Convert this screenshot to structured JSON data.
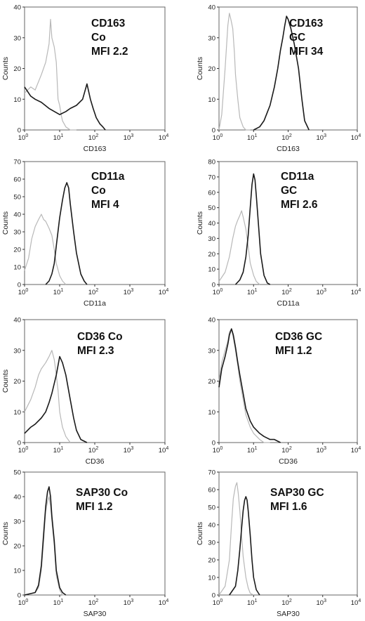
{
  "chart_data": [
    {
      "type": "line",
      "title": "",
      "xlabel": "CD163",
      "ylabel": "Counts",
      "xscale": "log",
      "xlim": [
        1,
        10000
      ],
      "ylim": [
        0,
        40
      ],
      "yticks": [
        0,
        10,
        20,
        30,
        40
      ],
      "xtick_bases": [
        "10",
        "10",
        "10",
        "10",
        "10"
      ],
      "xtick_exps": [
        "0",
        "1",
        "2",
        "3",
        "4"
      ],
      "annotation": [
        "CD163",
        "Co",
        "MFI 2.2"
      ],
      "series": [
        {
          "color": "#b8b8b8",
          "x": [
            1,
            1.5,
            2,
            3,
            4,
            5,
            5.5,
            6,
            7,
            8,
            9,
            10,
            11,
            12,
            15,
            20,
            30
          ],
          "y": [
            12,
            14,
            13,
            18,
            22,
            28,
            36,
            30,
            27,
            22,
            10,
            8,
            5,
            3,
            1,
            0,
            0
          ]
        },
        {
          "color": "#1a1a1a",
          "x": [
            1,
            1.5,
            2,
            3,
            5,
            10,
            15,
            20,
            30,
            45,
            60,
            75,
            90,
            110,
            140,
            170,
            200
          ],
          "y": [
            14,
            11,
            10,
            9,
            7,
            5,
            6,
            7,
            8,
            10,
            15,
            10,
            7,
            4,
            2,
            1,
            0
          ]
        }
      ]
    },
    {
      "type": "line",
      "title": "",
      "xlabel": "CD163",
      "ylabel": "Counts",
      "xscale": "log",
      "xlim": [
        1,
        10000
      ],
      "ylim": [
        0,
        40
      ],
      "yticks": [
        0,
        10,
        20,
        30,
        40
      ],
      "xtick_bases": [
        "10",
        "10",
        "10",
        "10",
        "10"
      ],
      "xtick_exps": [
        "0",
        "1",
        "2",
        "3",
        "4"
      ],
      "annotation": [
        "CD163",
        "GC",
        "MFI 34"
      ],
      "series": [
        {
          "color": "#b8b8b8",
          "x": [
            1,
            1.2,
            1.5,
            1.8,
            2,
            2.2,
            2.5,
            2.8,
            3,
            3.5,
            4,
            5,
            6,
            8
          ],
          "y": [
            0,
            5,
            20,
            34,
            38,
            36,
            33,
            25,
            18,
            10,
            4,
            1,
            0,
            0
          ]
        },
        {
          "color": "#1a1a1a",
          "x": [
            10,
            15,
            20,
            30,
            40,
            50,
            60,
            70,
            80,
            90,
            100,
            120,
            150,
            200,
            250,
            300,
            400
          ],
          "y": [
            0,
            1,
            3,
            8,
            14,
            20,
            26,
            30,
            34,
            37,
            36,
            33,
            28,
            20,
            10,
            3,
            0
          ]
        }
      ]
    },
    {
      "type": "line",
      "title": "",
      "xlabel": "CD11a",
      "ylabel": "Counts",
      "xscale": "log",
      "xlim": [
        1,
        10000
      ],
      "ylim": [
        0,
        70
      ],
      "yticks": [
        0,
        10,
        20,
        30,
        40,
        50,
        60,
        70
      ],
      "xtick_bases": [
        "10",
        "10",
        "10",
        "10",
        "10"
      ],
      "xtick_exps": [
        "0",
        "1",
        "2",
        "3",
        "4"
      ],
      "annotation": [
        "CD11a",
        "Co",
        "MFI 4"
      ],
      "series": [
        {
          "color": "#b8b8b8",
          "x": [
            1,
            1.3,
            1.6,
            2,
            2.5,
            3,
            3.5,
            4,
            5,
            6,
            7,
            8,
            10,
            12,
            15
          ],
          "y": [
            8,
            15,
            26,
            33,
            37,
            40,
            37,
            36,
            32,
            28,
            20,
            12,
            5,
            2,
            0
          ]
        },
        {
          "color": "#1a1a1a",
          "x": [
            4,
            5,
            6,
            7,
            8,
            10,
            12,
            14,
            16,
            18,
            20,
            25,
            30,
            40,
            50,
            60
          ],
          "y": [
            0,
            2,
            6,
            12,
            22,
            38,
            48,
            55,
            58,
            55,
            46,
            30,
            18,
            6,
            2,
            0
          ]
        }
      ]
    },
    {
      "type": "line",
      "title": "",
      "xlabel": "CD11a",
      "ylabel": "Counts",
      "xscale": "log",
      "xlim": [
        1,
        10000
      ],
      "ylim": [
        0,
        80
      ],
      "yticks": [
        0,
        10,
        20,
        30,
        40,
        50,
        60,
        70,
        80
      ],
      "xtick_bases": [
        "10",
        "10",
        "10",
        "10",
        "10"
      ],
      "xtick_exps": [
        "0",
        "1",
        "2",
        "3",
        "4"
      ],
      "annotation": [
        "CD11a",
        "GC",
        "MFI 2.6"
      ],
      "series": [
        {
          "color": "#b8b8b8",
          "x": [
            1,
            1.5,
            2,
            2.5,
            3,
            3.5,
            4,
            4.5,
            5,
            6,
            7,
            8,
            10,
            12,
            15
          ],
          "y": [
            2,
            8,
            18,
            30,
            38,
            42,
            45,
            48,
            44,
            36,
            25,
            14,
            6,
            2,
            0
          ]
        },
        {
          "color": "#1a1a1a",
          "x": [
            3,
            4,
            5,
            6,
            7,
            8,
            9,
            10,
            11,
            12,
            14,
            16,
            20,
            25,
            30
          ],
          "y": [
            0,
            3,
            8,
            18,
            32,
            50,
            65,
            72,
            68,
            58,
            38,
            20,
            6,
            1,
            0
          ]
        }
      ]
    },
    {
      "type": "line",
      "title": "",
      "xlabel": "CD36",
      "ylabel": "Counts",
      "xscale": "log",
      "xlim": [
        1,
        10000
      ],
      "ylim": [
        0,
        40
      ],
      "yticks": [
        0,
        10,
        20,
        30,
        40
      ],
      "xtick_bases": [
        "10",
        "10",
        "10",
        "10",
        "10"
      ],
      "xtick_exps": [
        "0",
        "1",
        "2",
        "3",
        "4"
      ],
      "annotation": [
        "CD36 Co",
        "MFI 2.3"
      ],
      "series": [
        {
          "color": "#b8b8b8",
          "x": [
            1,
            1.5,
            2,
            2.5,
            3,
            4,
            5,
            6,
            7,
            8,
            9,
            10,
            12,
            15,
            20
          ],
          "y": [
            10,
            14,
            18,
            22,
            24,
            26,
            28,
            30,
            27,
            22,
            17,
            10,
            5,
            2,
            0
          ]
        },
        {
          "color": "#1a1a1a",
          "x": [
            1,
            1.5,
            2,
            3,
            4,
            5,
            6,
            8,
            10,
            12,
            15,
            20,
            25,
            30,
            40,
            60
          ],
          "y": [
            3,
            5,
            6,
            8,
            10,
            13,
            16,
            22,
            28,
            26,
            22,
            14,
            8,
            4,
            1,
            0
          ]
        }
      ]
    },
    {
      "type": "line",
      "title": "",
      "xlabel": "CD36",
      "ylabel": "",
      "xscale": "log",
      "xlim": [
        1,
        10000
      ],
      "ylim": [
        0,
        40
      ],
      "yticks": [
        0,
        10,
        20,
        30,
        40
      ],
      "xtick_bases": [
        "10",
        "10",
        "10",
        "10",
        "10"
      ],
      "xtick_exps": [
        "0",
        "1",
        "2",
        "3",
        "4"
      ],
      "annotation": [
        "CD36 GC",
        "MFI 1.2"
      ],
      "series": [
        {
          "color": "#b8b8b8",
          "x": [
            1,
            1.2,
            1.5,
            1.8,
            2,
            2.3,
            2.6,
            3,
            3.5,
            4,
            5,
            6,
            8,
            10,
            15,
            20,
            30
          ],
          "y": [
            20,
            26,
            30,
            33,
            36,
            37,
            34,
            30,
            25,
            20,
            14,
            9,
            5,
            3,
            1,
            0,
            0
          ]
        },
        {
          "color": "#1a1a1a",
          "x": [
            1,
            1.2,
            1.5,
            1.8,
            2,
            2.3,
            2.6,
            3,
            3.5,
            4,
            5,
            6,
            8,
            10,
            15,
            20,
            30,
            40,
            60
          ],
          "y": [
            18,
            24,
            28,
            32,
            35,
            37,
            35,
            31,
            26,
            22,
            16,
            11,
            7,
            5,
            3,
            2,
            1,
            1,
            0
          ]
        }
      ]
    },
    {
      "type": "line",
      "title": "",
      "xlabel": "SAP30",
      "ylabel": "Counts",
      "xscale": "log",
      "xlim": [
        1,
        10000
      ],
      "ylim": [
        0,
        50
      ],
      "yticks": [
        0,
        10,
        20,
        30,
        40,
        50
      ],
      "xtick_bases": [
        "10",
        "10",
        "10",
        "10",
        "10"
      ],
      "xtick_exps": [
        "0",
        "1",
        "2",
        "3",
        "4"
      ],
      "annotation": [
        "SAP30 Co",
        "MFI 1.2"
      ],
      "series": [
        {
          "color": "#b8b8b8",
          "x": [
            1,
            2,
            2.5,
            3,
            3.5,
            4,
            4.5,
            5,
            5.5,
            6,
            7,
            8,
            10,
            12,
            15
          ],
          "y": [
            0,
            1,
            3,
            10,
            22,
            34,
            38,
            40,
            36,
            30,
            20,
            8,
            2,
            0,
            0
          ]
        },
        {
          "color": "#1a1a1a",
          "x": [
            1,
            2,
            2.5,
            3,
            3.5,
            4,
            4.5,
            5,
            5.5,
            6,
            7,
            8,
            10,
            12,
            15
          ],
          "y": [
            0,
            1,
            4,
            12,
            25,
            36,
            42,
            44,
            40,
            32,
            22,
            10,
            3,
            1,
            0
          ]
        }
      ]
    },
    {
      "type": "line",
      "title": "",
      "xlabel": "SAP30",
      "ylabel": "Counts",
      "xscale": "log",
      "xlim": [
        1,
        10000
      ],
      "ylim": [
        0,
        70
      ],
      "yticks": [
        0,
        10,
        20,
        30,
        40,
        50,
        60,
        70
      ],
      "xtick_bases": [
        "10",
        "10",
        "10",
        "10",
        "10"
      ],
      "xtick_exps": [
        "0",
        "1",
        "2",
        "3",
        "4"
      ],
      "annotation": [
        "SAP30 GC",
        "MFI 1.6"
      ],
      "series": [
        {
          "color": "#b8b8b8",
          "x": [
            1,
            1.5,
            2,
            2.3,
            2.6,
            3,
            3.3,
            3.6,
            4,
            4.5,
            5,
            6,
            7,
            8,
            10
          ],
          "y": [
            0,
            5,
            20,
            40,
            55,
            62,
            64,
            58,
            48,
            34,
            22,
            10,
            4,
            1,
            0
          ]
        },
        {
          "color": "#1a1a1a",
          "x": [
            2,
            3,
            3.5,
            4,
            4.5,
            5,
            5.5,
            6,
            6.5,
            7,
            8,
            9,
            10,
            12,
            15
          ],
          "y": [
            0,
            5,
            14,
            26,
            38,
            48,
            54,
            56,
            54,
            48,
            34,
            20,
            10,
            3,
            0
          ]
        }
      ]
    }
  ]
}
